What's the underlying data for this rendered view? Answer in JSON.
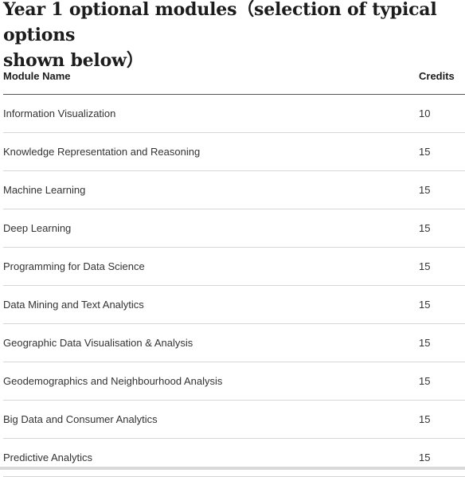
{
  "heading": "Year 1 optional modules（selection of typical options\nshown below）",
  "table": {
    "headers": {
      "name": "Module Name",
      "credits": "Credits"
    },
    "rows": [
      {
        "name": "Information Visualization",
        "credits": "10"
      },
      {
        "name": "Knowledge Representation and Reasoning",
        "credits": "15"
      },
      {
        "name": "Machine Learning",
        "credits": "15"
      },
      {
        "name": "Deep Learning",
        "credits": "15"
      },
      {
        "name": "Programming for Data Science",
        "credits": "15"
      },
      {
        "name": "Data Mining and Text Analytics",
        "credits": "15"
      },
      {
        "name": "Geographic Data Visualisation & Analysis",
        "credits": "15"
      },
      {
        "name": "Geodemographics and Neighbourhood Analysis",
        "credits": "15"
      },
      {
        "name": "Big Data and Consumer Analytics",
        "credits": "15"
      },
      {
        "name": "Predictive Analytics",
        "credits": "15"
      }
    ]
  }
}
